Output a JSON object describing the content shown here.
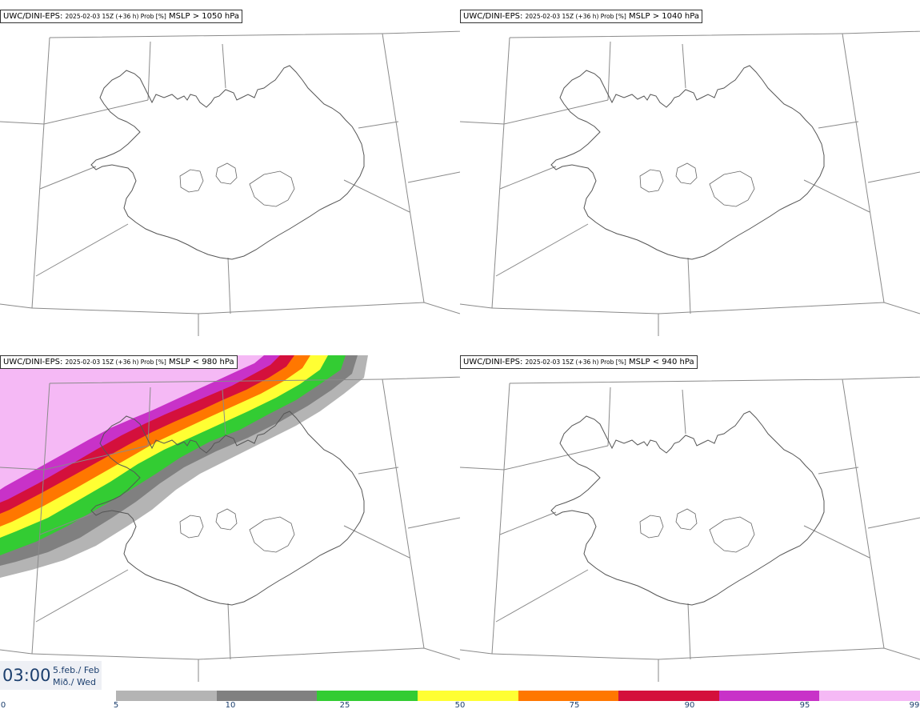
{
  "panels": [
    {
      "model": "UWC/DINI-EPS",
      "run": "2025-02-03 15Z (+36 h) Prob [%]",
      "threshold": "MSLP > 1050 hPa"
    },
    {
      "model": "UWC/DINI-EPS",
      "run": "2025-02-03 15Z (+36 h) Prob [%]",
      "threshold": "MSLP > 1040 hPa"
    },
    {
      "model": "UWC/DINI-EPS",
      "run": "2025-02-03 15Z (+36 h) Prob [%]",
      "threshold": "MSLP < 980 hPa"
    },
    {
      "model": "UWC/DINI-EPS",
      "run": "2025-02-03 15Z (+36 h) Prob [%]",
      "threshold": "MSLP < 940 hPa"
    }
  ],
  "time": {
    "clock": "03:00",
    "date": "5.feb./ Feb",
    "weekday": "Mið./ Wed"
  },
  "colorbar": {
    "ticks": [
      "0",
      "5",
      "10",
      "25",
      "50",
      "75",
      "90",
      "95",
      "99"
    ],
    "colors": [
      "#b4b4b4",
      "#808080",
      "#33cc33",
      "#ffff33",
      "#ff7700",
      "#d4103c",
      "#c832c8",
      "#f5b9f5"
    ]
  }
}
